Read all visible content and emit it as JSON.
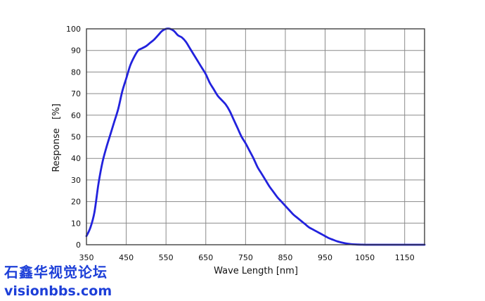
{
  "chart_data": {
    "type": "line",
    "title": "",
    "xlabel": "Wave Length [nm]",
    "ylabel": "Response   [%]",
    "xlim": [
      350,
      1200
    ],
    "ylim": [
      0,
      100
    ],
    "xticks": [
      350,
      450,
      550,
      650,
      750,
      850,
      950,
      1050,
      1150
    ],
    "yticks": [
      0,
      10,
      20,
      30,
      40,
      50,
      60,
      70,
      80,
      90,
      100
    ],
    "grid": true,
    "series": [
      {
        "color": "#2222dd",
        "x": [
          350,
          360,
          370,
          380,
          390,
          400,
          410,
          420,
          430,
          440,
          450,
          460,
          470,
          480,
          490,
          500,
          510,
          520,
          530,
          540,
          550,
          560,
          570,
          580,
          590,
          600,
          610,
          620,
          630,
          640,
          650,
          660,
          670,
          680,
          690,
          700,
          710,
          720,
          730,
          740,
          750,
          760,
          770,
          780,
          790,
          800,
          810,
          820,
          830,
          840,
          850,
          860,
          870,
          880,
          890,
          900,
          910,
          920,
          930,
          940,
          950,
          960,
          970,
          980,
          990,
          1000,
          1010,
          1020,
          1030,
          1040,
          1050,
          1060,
          1070,
          1080,
          1090,
          1100,
          1110,
          1120,
          1150,
          1200
        ],
        "y": [
          4,
          8,
          15,
          28,
          38,
          45,
          51,
          57,
          63,
          71,
          77,
          83,
          87,
          90,
          91,
          92,
          93.5,
          95,
          97,
          99,
          100,
          100,
          99,
          97,
          96,
          94,
          91,
          88,
          85,
          82,
          79,
          75,
          72,
          69,
          67,
          65,
          62,
          58,
          54,
          50,
          47,
          43.5,
          40,
          36,
          33,
          30,
          27,
          24.5,
          22,
          20,
          18,
          16,
          14,
          12.5,
          11,
          9.5,
          8,
          7,
          6,
          5,
          4,
          3,
          2.3,
          1.6,
          1.1,
          0.7,
          0.4,
          0.2,
          0.1,
          0.05,
          0,
          0,
          0,
          0,
          0,
          0,
          0,
          0,
          0,
          0
        ]
      }
    ]
  },
  "watermark": {
    "cn": "石鑫华视觉论坛",
    "url": "visionbbs.com",
    "color": "#1d3fd8"
  }
}
